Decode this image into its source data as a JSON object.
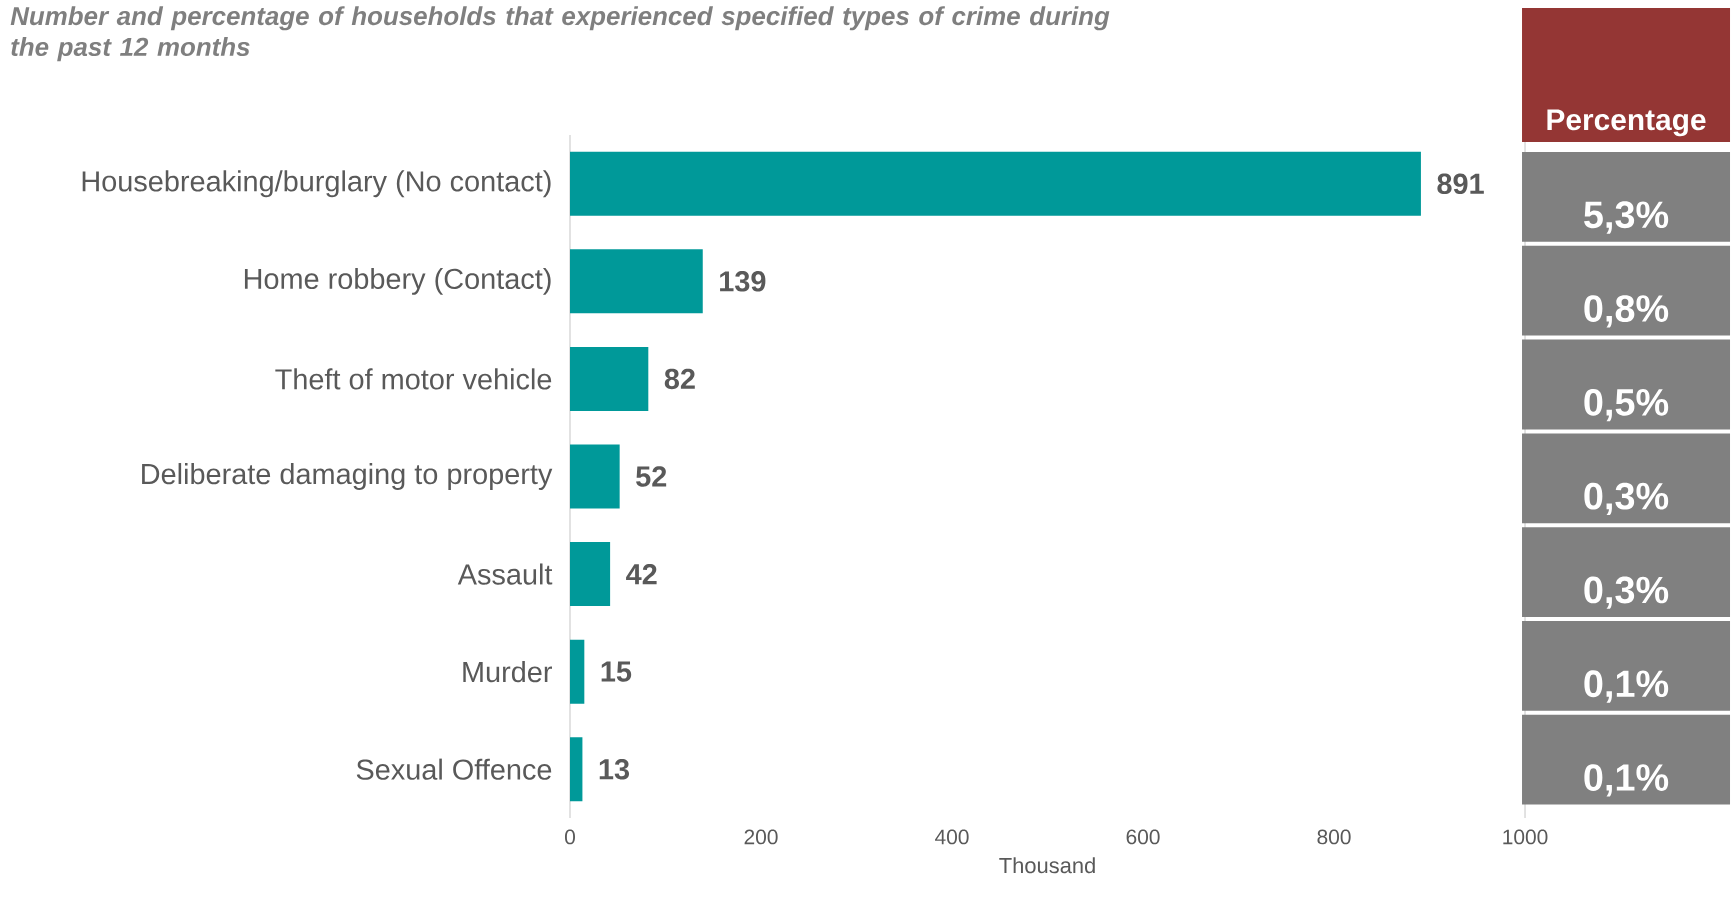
{
  "chart_data": [
    {
      "type": "bar",
      "orientation": "horizontal",
      "title": "Number and percentage of households that experienced specified types of crime during the past 12 months",
      "categories": [
        "Housebreaking/burglary (No contact)",
        "Home robbery (Contact)",
        "Theft of motor vehicle",
        "Deliberate damaging to property",
        "Assault",
        "Murder",
        "Sexual Offence"
      ],
      "values": [
        891,
        139,
        82,
        52,
        42,
        15,
        13
      ],
      "color": "#009999",
      "data_labels": true,
      "xlim": [
        0,
        1000
      ],
      "xticks": [
        0,
        200,
        400,
        600,
        800,
        1000
      ],
      "xlabel": "Thousand"
    },
    {
      "type": "other",
      "title": "Percentage",
      "annotations": [
        "5,3%",
        "0,8%",
        "0,5%",
        "0,3%",
        "0,3%",
        "0,1%",
        "0,1%"
      ]
    }
  ]
}
